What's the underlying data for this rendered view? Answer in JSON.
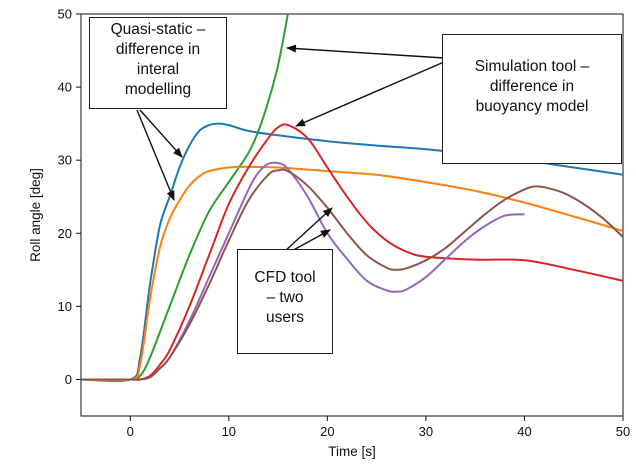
{
  "chart_data": {
    "type": "line",
    "title": "",
    "xlabel": "Time [s]",
    "ylabel": "Roll angle [deg]",
    "xlim": [
      -5,
      50
    ],
    "ylim": [
      -5,
      50
    ],
    "xticks": [
      0,
      10,
      20,
      30,
      40,
      50
    ],
    "yticks": [
      0,
      10,
      20,
      30,
      40,
      50
    ],
    "grid": false,
    "series": [
      {
        "color": "#2ca02c",
        "x": [
          -5,
          0,
          1,
          2,
          4,
          6,
          8,
          10,
          12,
          13,
          14,
          15,
          16
        ],
        "y": [
          0,
          0,
          0.5,
          3,
          10,
          17,
          23,
          27,
          31,
          34,
          38,
          43,
          50
        ]
      },
      {
        "color": "#1f77b4",
        "x": [
          -5,
          0,
          1,
          2,
          3,
          4,
          5,
          6,
          7,
          8,
          9,
          10,
          12,
          15,
          20,
          25,
          30,
          35,
          40,
          45,
          50
        ],
        "y": [
          0,
          0,
          3,
          13,
          21,
          25,
          29,
          32,
          34,
          34.8,
          35,
          34.8,
          34,
          33.4,
          32.6,
          32,
          31.5,
          30.8,
          30,
          29,
          28
        ]
      },
      {
        "color": "#ff7f0e",
        "x": [
          -5,
          0,
          1,
          2,
          3,
          4,
          5,
          6,
          7,
          8,
          10,
          12,
          15,
          20,
          25,
          30,
          35,
          40,
          45,
          50
        ],
        "y": [
          0,
          0,
          2,
          11,
          18,
          22,
          24.5,
          26.5,
          27.8,
          28.5,
          29,
          29.1,
          29,
          28.5,
          28,
          27,
          25.8,
          24.2,
          22.3,
          20.3
        ]
      },
      {
        "color": "#d62728",
        "x": [
          -5,
          0,
          1,
          2,
          3,
          4,
          6,
          8,
          10,
          12,
          14,
          15,
          16,
          18,
          20,
          22,
          24,
          26,
          28,
          30,
          35,
          40,
          45,
          50
        ],
        "y": [
          0,
          0,
          0,
          0.5,
          2,
          4,
          10,
          17,
          24,
          29,
          33,
          34.5,
          34.8,
          33,
          29,
          25,
          21.5,
          19,
          17.5,
          16.8,
          16.4,
          16.3,
          15,
          13.5
        ]
      },
      {
        "color": "#9467bd",
        "x": [
          -5,
          0,
          1,
          2,
          3,
          4,
          6,
          8,
          10,
          12,
          13,
          14,
          15,
          16,
          18,
          20,
          22,
          24,
          26,
          27,
          28,
          30,
          32,
          34,
          36,
          38,
          40
        ],
        "y": [
          0,
          0,
          0,
          0.3,
          1.5,
          3,
          8,
          14,
          20,
          26,
          28.3,
          29.5,
          29.6,
          28.8,
          25,
          20,
          16.5,
          13.5,
          12.2,
          12,
          12.3,
          14,
          16.5,
          19,
          21,
          22.4,
          22.6
        ]
      },
      {
        "color": "#8c564b",
        "x": [
          -5,
          0,
          1,
          2,
          3,
          4,
          6,
          8,
          10,
          12,
          14,
          15,
          16,
          18,
          20,
          22,
          24,
          26,
          27,
          28,
          30,
          32,
          34,
          36,
          38,
          40,
          41,
          42,
          44,
          46,
          48,
          50
        ],
        "y": [
          0,
          0,
          0,
          0.3,
          1.5,
          3,
          7.5,
          13,
          19,
          24.5,
          28,
          28.6,
          28.5,
          26.5,
          23.5,
          20,
          17,
          15.3,
          15,
          15.2,
          16.3,
          18,
          20.3,
          22.6,
          24.6,
          26,
          26.4,
          26.3,
          25.5,
          24,
          22,
          19.5
        ]
      }
    ],
    "annotations": [
      {
        "text": "Quasi-static –\ndifference in\ninteral\nmodelling"
      },
      {
        "text": "Simulation tool –\ndifference in\nbuoyancy model"
      },
      {
        "text": "CFD tool\n– two\nusers"
      }
    ]
  }
}
